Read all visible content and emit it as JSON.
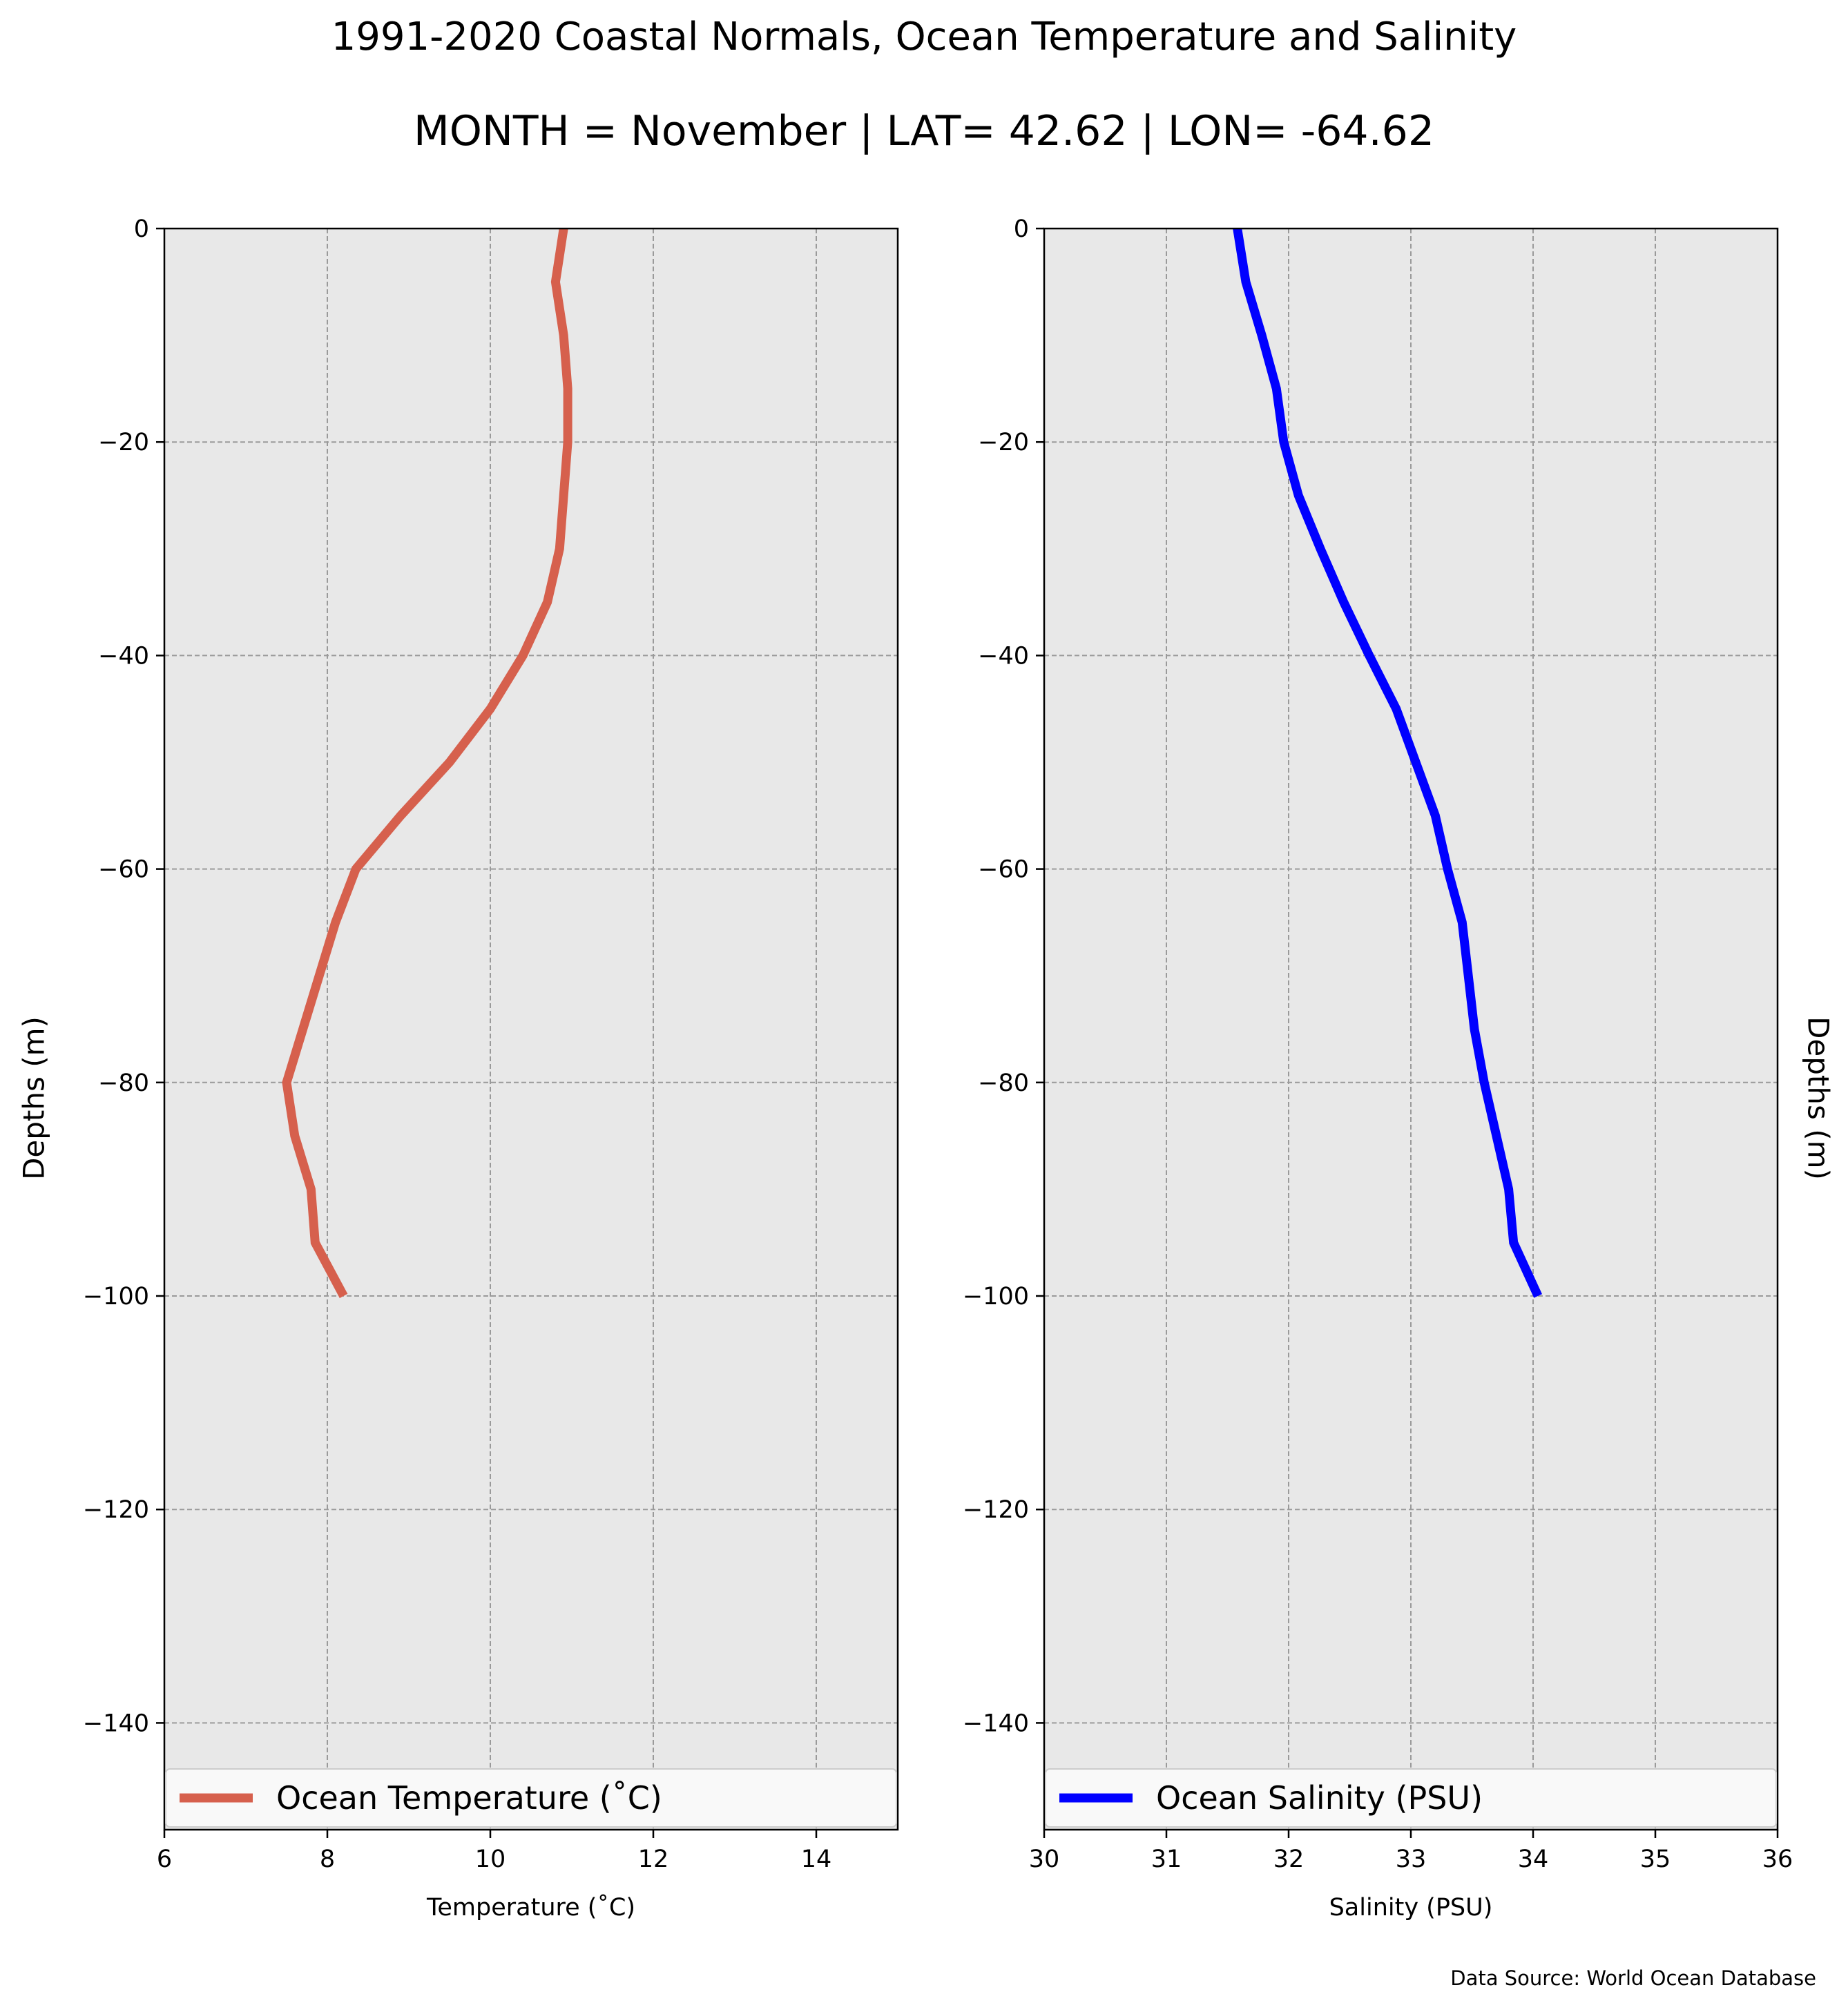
{
  "title": "1991-2020 Coastal Normals, Ocean Temperature and Salinity",
  "subtitle": "MONTH = November | LAT= 42.62 | LON= -64.62",
  "source_note": "Data Source: World Ocean Database",
  "chart_data": [
    {
      "type": "line",
      "xlabel": "Temperature (˚C)",
      "ylabel": "Depths (m)",
      "ylabel_side": "left",
      "xlim": [
        6,
        15
      ],
      "ylim": [
        -150,
        0
      ],
      "xticks": [
        6,
        8,
        10,
        12,
        14
      ],
      "xtick_labels": [
        "6",
        "8",
        "10",
        "12",
        "14"
      ],
      "yticks": [
        0,
        -20,
        -40,
        -60,
        -80,
        -100,
        -120,
        -140
      ],
      "ytick_labels": [
        "0",
        "−20",
        "−40",
        "−60",
        "−80",
        "−100",
        "−120",
        "−140"
      ],
      "grid": true,
      "legend_position": "bottom",
      "series": [
        {
          "name": "Ocean Temperature (˚C)",
          "color": "#d6604d",
          "x": [
            10.9,
            10.8,
            10.9,
            10.95,
            10.95,
            10.9,
            10.85,
            10.7,
            10.4,
            10.0,
            9.5,
            8.9,
            8.35,
            8.1,
            7.9,
            7.7,
            7.5,
            7.6,
            7.8,
            7.85,
            8.2
          ],
          "y": [
            0,
            -5,
            -10,
            -15,
            -20,
            -25,
            -30,
            -35,
            -40,
            -45,
            -50,
            -55,
            -60,
            -65,
            -70,
            -75,
            -80,
            -85,
            -90,
            -95,
            -100
          ]
        }
      ]
    },
    {
      "type": "line",
      "xlabel": "Salinity (PSU)",
      "ylabel": "Depths (m)",
      "ylabel_side": "right",
      "xlim": [
        30,
        36
      ],
      "ylim": [
        -150,
        0
      ],
      "xticks": [
        30,
        31,
        32,
        33,
        34,
        35,
        36
      ],
      "xtick_labels": [
        "30",
        "31",
        "32",
        "33",
        "34",
        "35",
        "36"
      ],
      "yticks": [
        0,
        -20,
        -40,
        -60,
        -80,
        -100,
        -120,
        -140
      ],
      "ytick_labels": [
        "0",
        "−20",
        "−40",
        "−60",
        "−80",
        "−100",
        "−120",
        "−140"
      ],
      "grid": true,
      "legend_position": "bottom",
      "series": [
        {
          "name": "Ocean Salinity (PSU)",
          "color": "#0000ff",
          "x": [
            31.58,
            31.65,
            31.78,
            31.9,
            31.96,
            32.08,
            32.26,
            32.45,
            32.66,
            32.88,
            33.04,
            33.2,
            33.3,
            33.42,
            33.47,
            33.52,
            33.6,
            33.7,
            33.8,
            33.84,
            34.04
          ],
          "y": [
            0,
            -5,
            -10,
            -15,
            -20,
            -25,
            -30,
            -35,
            -40,
            -45,
            -50,
            -55,
            -60,
            -65,
            -70,
            -75,
            -80,
            -85,
            -90,
            -95,
            -100
          ]
        }
      ]
    }
  ]
}
